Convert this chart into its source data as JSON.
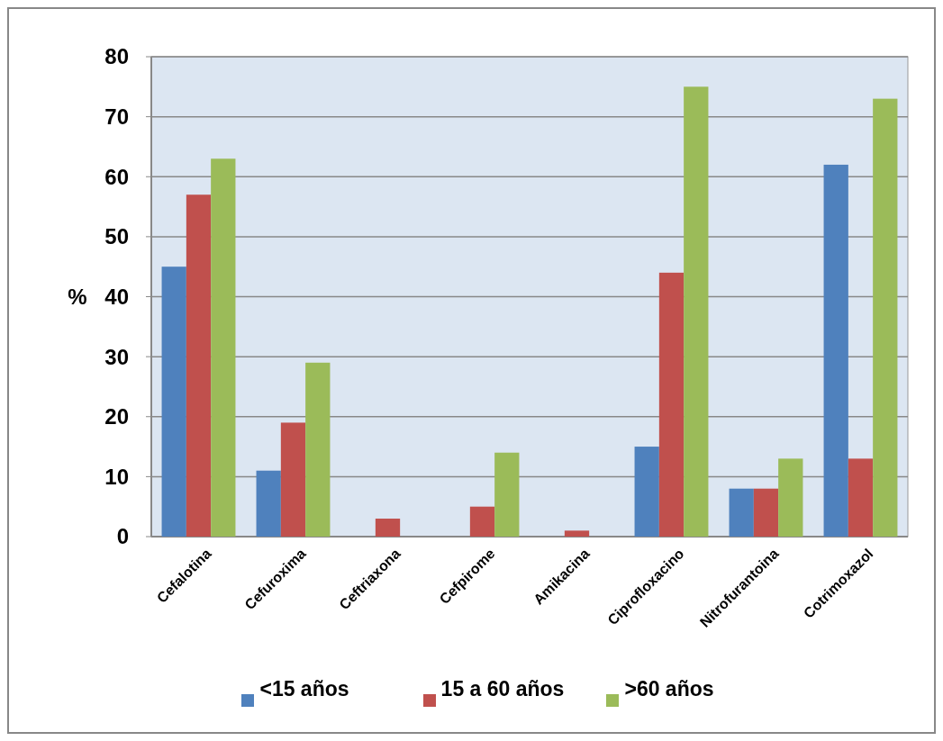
{
  "chart_data": {
    "type": "bar",
    "ylabel": "%",
    "categories": [
      "Cefalotina",
      "Cefuroxima",
      "Ceftriaxona",
      "Cefpirome",
      "Amikacina",
      "Ciprofloxacino",
      "Nitrofurantoina",
      "Cotrimoxazol"
    ],
    "series": [
      {
        "name": "<15 años",
        "color": "#4f81bd",
        "values": [
          45,
          11,
          0,
          0,
          0,
          15,
          8,
          62
        ]
      },
      {
        "name": "15 a 60 años",
        "color": "#c0504d",
        "values": [
          57,
          19,
          3,
          5,
          1,
          44,
          8,
          13
        ]
      },
      {
        "name": ">60 años",
        "color": "#9bbb59",
        "values": [
          63,
          29,
          0,
          14,
          0,
          75,
          13,
          73
        ]
      }
    ],
    "ylim": [
      0,
      80
    ],
    "yticks": [
      0,
      10,
      20,
      30,
      40,
      50,
      60,
      70,
      80
    ],
    "grid": "y",
    "legend": "bottom"
  }
}
